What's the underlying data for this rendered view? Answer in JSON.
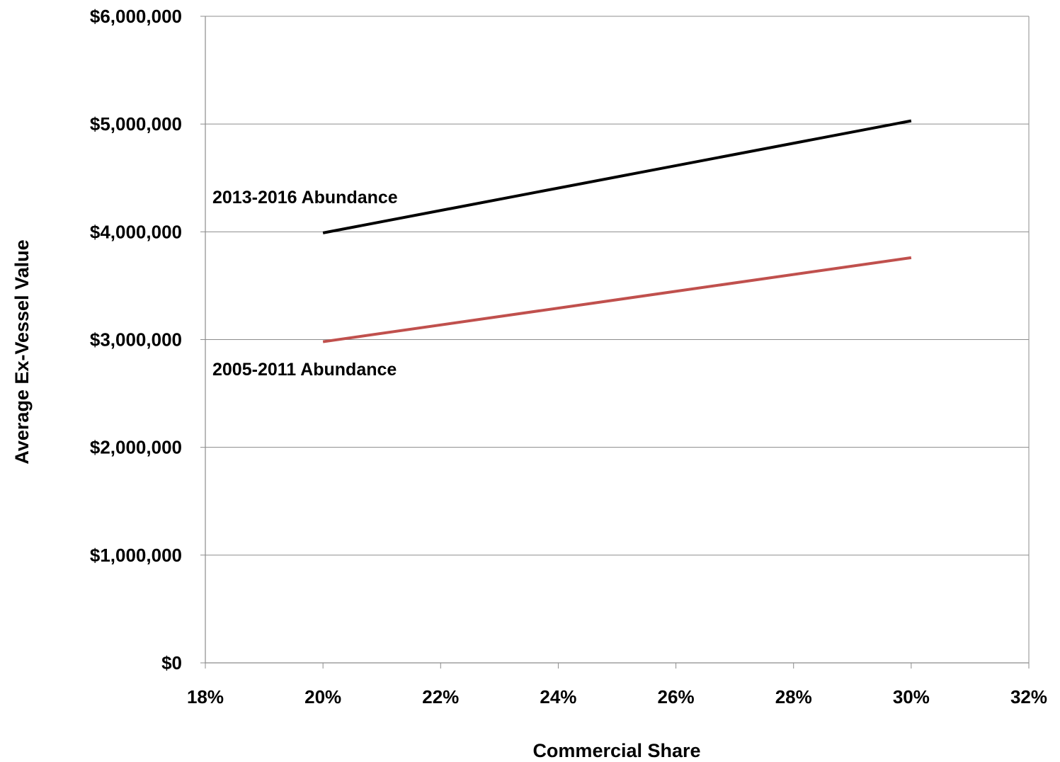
{
  "chart_data": {
    "type": "line",
    "xlabel": "Commercial Share",
    "ylabel": "Average Ex-Vessel Value",
    "xlim": [
      0.18,
      0.32
    ],
    "ylim": [
      0,
      6000000
    ],
    "x_ticks": [
      0.18,
      0.2,
      0.22,
      0.24,
      0.26,
      0.28,
      0.3,
      0.32
    ],
    "x_tick_labels": [
      "18%",
      "20%",
      "22%",
      "24%",
      "26%",
      "28%",
      "30%",
      "32%"
    ],
    "y_ticks": [
      0,
      1000000,
      2000000,
      3000000,
      4000000,
      5000000,
      6000000
    ],
    "y_tick_labels": [
      "$0",
      "$1,000,000",
      "$2,000,000",
      "$3,000,000",
      "$4,000,000",
      "$5,000,000",
      "$6,000,000"
    ],
    "grid": "horizontal",
    "series": [
      {
        "name": "2013-2016 Abundance",
        "color": "#000000",
        "x": [
          0.2,
          0.3
        ],
        "values": [
          3990000,
          5030000
        ]
      },
      {
        "name": "2005-2011 Abundance",
        "color": "#c0504d",
        "x": [
          0.2,
          0.3
        ],
        "values": [
          2980000,
          3760000
        ]
      }
    ],
    "annotations": [
      {
        "text": "2013-2016 Abundance",
        "series": 0
      },
      {
        "text": "2005-2011 Abundance",
        "series": 1
      }
    ]
  }
}
